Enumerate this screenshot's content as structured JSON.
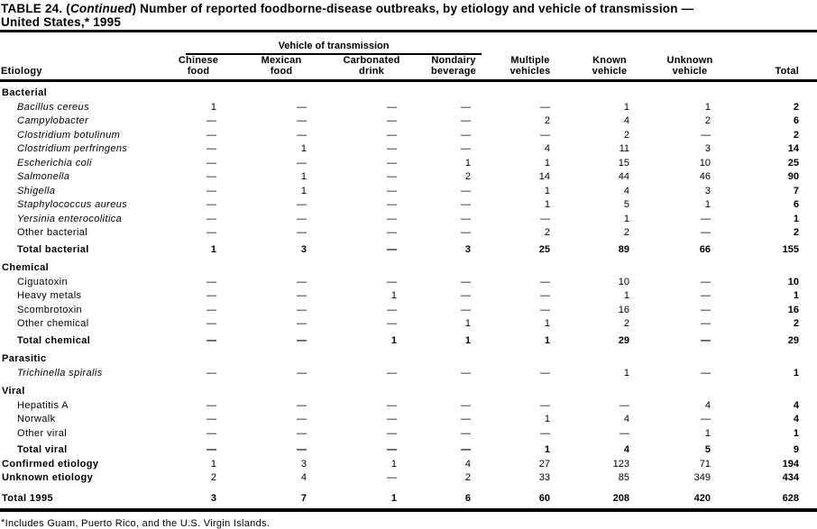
{
  "title": {
    "part1": "TABLE 24. (",
    "continued": "Continued",
    "part2": ") Number of reported foodborne-disease outbreaks, by etiology and vehicle of transmission —",
    "line2": "United States,* 1995"
  },
  "header": {
    "etiology": "Etiology",
    "spanner": "Vehicle of transmission",
    "columns": [
      [
        "Chinese",
        "food"
      ],
      [
        "Mexican",
        "food"
      ],
      [
        "Carbonated",
        "drink"
      ],
      [
        "Nondairy",
        "beverage"
      ],
      [
        "Multiple",
        "vehicles"
      ],
      [
        "Known",
        "vehicle"
      ],
      [
        "Unknown",
        "vehicle"
      ],
      [
        "Total"
      ]
    ]
  },
  "rows": [
    {
      "type": "section",
      "label": "Bacterial",
      "values": []
    },
    {
      "type": "species",
      "label": "Bacillus cereus",
      "values": [
        "1",
        "—",
        "—",
        "—",
        "—",
        "1",
        "1",
        "2"
      ]
    },
    {
      "type": "species",
      "label": "Campylobacter",
      "values": [
        "—",
        "—",
        "—",
        "—",
        "2",
        "4",
        "2",
        "6"
      ]
    },
    {
      "type": "species",
      "label": "Clostridium botulinum",
      "values": [
        "—",
        "—",
        "—",
        "—",
        "—",
        "2",
        "—",
        "2"
      ]
    },
    {
      "type": "species",
      "label": "Clostridium perfringens",
      "values": [
        "—",
        "1",
        "—",
        "—",
        "4",
        "11",
        "3",
        "14"
      ]
    },
    {
      "type": "species",
      "label": "Escherichia coli",
      "values": [
        "—",
        "—",
        "—",
        "1",
        "1",
        "15",
        "10",
        "25"
      ]
    },
    {
      "type": "species",
      "label": "Salmonella",
      "values": [
        "—",
        "1",
        "—",
        "2",
        "14",
        "44",
        "46",
        "90"
      ]
    },
    {
      "type": "species",
      "label": "Shigella",
      "values": [
        "—",
        "1",
        "—",
        "—",
        "1",
        "4",
        "3",
        "7"
      ]
    },
    {
      "type": "species",
      "label": "Staphylococcus aureus",
      "values": [
        "—",
        "—",
        "—",
        "—",
        "1",
        "5",
        "1",
        "6"
      ]
    },
    {
      "type": "species",
      "label": "Yersinia enterocolitica",
      "values": [
        "—",
        "—",
        "—",
        "—",
        "—",
        "1",
        "—",
        "1"
      ]
    },
    {
      "type": "item",
      "label": "Other bacterial",
      "values": [
        "—",
        "—",
        "—",
        "—",
        "2",
        "2",
        "—",
        "2"
      ]
    },
    {
      "type": "total",
      "label": "Total bacterial",
      "values": [
        "1",
        "3",
        "—",
        "3",
        "25",
        "89",
        "66",
        "155"
      ]
    },
    {
      "type": "section",
      "label": "Chemical",
      "values": []
    },
    {
      "type": "item",
      "label": "Ciguatoxin",
      "values": [
        "—",
        "—",
        "—",
        "—",
        "—",
        "10",
        "—",
        "10"
      ]
    },
    {
      "type": "item",
      "label": "Heavy metals",
      "values": [
        "—",
        "—",
        "1",
        "—",
        "—",
        "1",
        "—",
        "1"
      ]
    },
    {
      "type": "item",
      "label": "Scombrotoxin",
      "values": [
        "—",
        "—",
        "—",
        "—",
        "—",
        "16",
        "—",
        "16"
      ]
    },
    {
      "type": "item",
      "label": "Other chemical",
      "values": [
        "—",
        "—",
        "—",
        "1",
        "1",
        "2",
        "—",
        "2"
      ]
    },
    {
      "type": "total",
      "label": "Total chemical",
      "values": [
        "—",
        "—",
        "1",
        "1",
        "1",
        "29",
        "—",
        "29"
      ]
    },
    {
      "type": "section",
      "label": "Parasitic",
      "values": []
    },
    {
      "type": "species",
      "label": "Trichinella spiralis",
      "values": [
        "—",
        "—",
        "—",
        "—",
        "—",
        "1",
        "—",
        "1"
      ]
    },
    {
      "type": "section",
      "label": "Viral",
      "values": []
    },
    {
      "type": "item",
      "label": "Hepatitis A",
      "values": [
        "—",
        "—",
        "—",
        "—",
        "—",
        "—",
        "4",
        "4"
      ]
    },
    {
      "type": "item",
      "label": "Norwalk",
      "values": [
        "—",
        "—",
        "—",
        "—",
        "1",
        "4",
        "—",
        "4"
      ]
    },
    {
      "type": "item",
      "label": "Other viral",
      "values": [
        "—",
        "—",
        "—",
        "—",
        "—",
        "—",
        "1",
        "1"
      ]
    },
    {
      "type": "total",
      "label": "Total viral",
      "values": [
        "—",
        "—",
        "—",
        "—",
        "1",
        "4",
        "5",
        "9"
      ]
    },
    {
      "type": "summary",
      "label": "Confirmed etiology",
      "values": [
        "1",
        "3",
        "1",
        "4",
        "27",
        "123",
        "71",
        "194"
      ]
    },
    {
      "type": "summary",
      "label": "Unknown etiology",
      "values": [
        "2",
        "4",
        "—",
        "2",
        "33",
        "85",
        "349",
        "434"
      ]
    },
    {
      "type": "grand",
      "label": "Total 1995",
      "values": [
        "3",
        "7",
        "1",
        "6",
        "60",
        "208",
        "420",
        "628"
      ]
    }
  ],
  "footnote": {
    "marker": "*",
    "text": "Includes Guam, Puerto Rico, and the U.S. Virgin Islands."
  },
  "colors": {
    "text": "#000000",
    "background": "#ffffff",
    "rule": "#000000"
  }
}
